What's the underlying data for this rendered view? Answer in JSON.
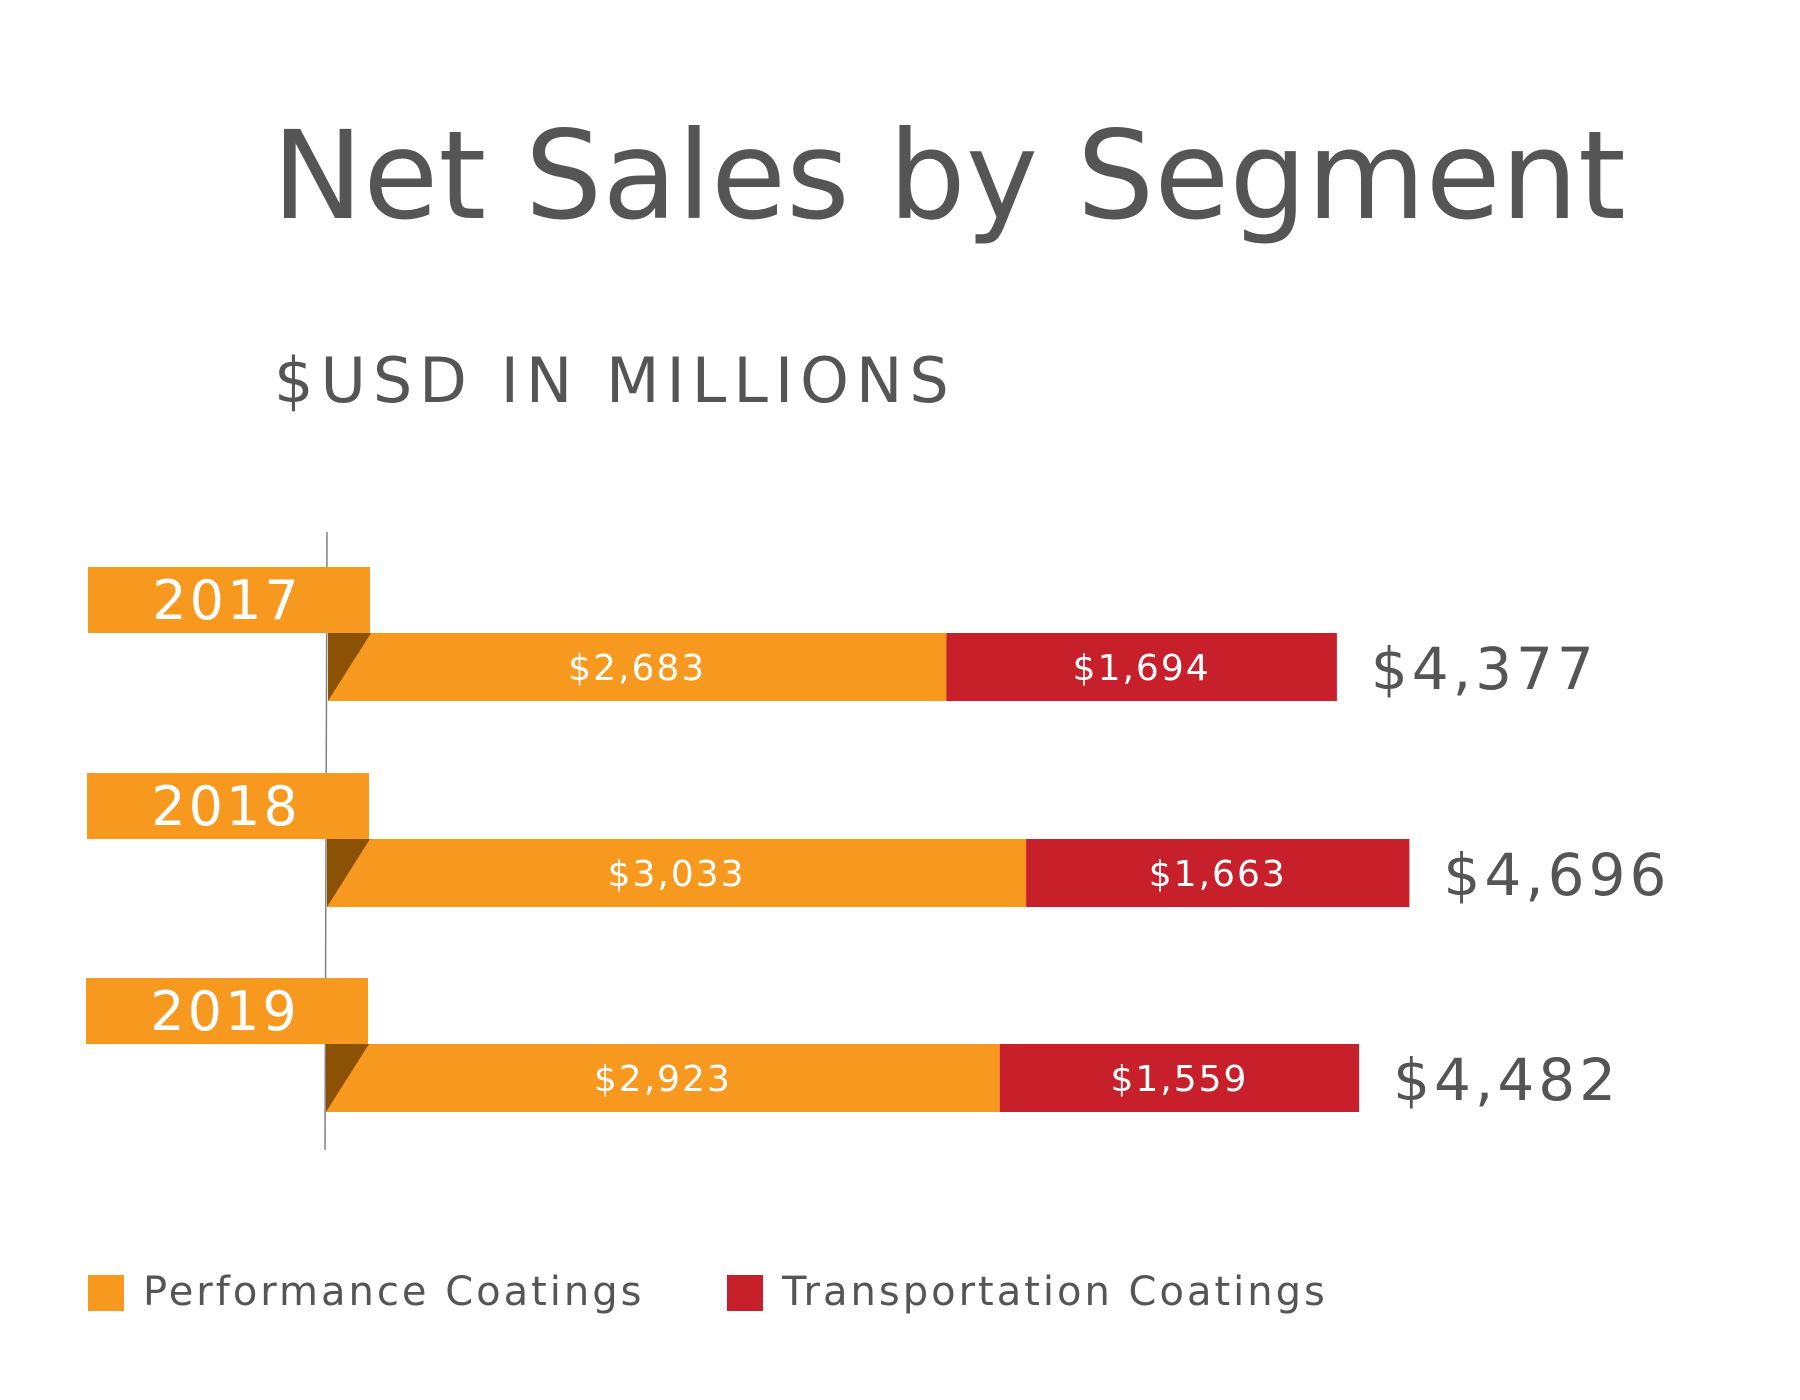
{
  "chart_data": {
    "type": "bar",
    "orientation": "horizontal",
    "stacked": true,
    "title": "Net Sales by Segment",
    "subtitle": "$USD IN MILLIONS",
    "categories": [
      "2017",
      "2018",
      "2019"
    ],
    "series": [
      {
        "name": "Performance Coatings",
        "values": [
          2683,
          3033,
          2923
        ],
        "labels": [
          "$2,683",
          "$3,033",
          "$2,923"
        ],
        "color": "#f7981f"
      },
      {
        "name": "Transportation Coatings",
        "values": [
          1694,
          1663,
          1559
        ],
        "labels": [
          "$1,694",
          "$1,663",
          "$1,559"
        ],
        "color": "#c8202a"
      }
    ],
    "totals": [
      4377,
      4696,
      4482
    ],
    "total_labels": [
      "$4,377",
      "$4,696",
      "$4,482"
    ],
    "legend_position": "bottom-left",
    "grid": false,
    "colors": {
      "text": "#555555",
      "year_tab": "#f7981f",
      "fold_shadow": "#8b5205",
      "axis_line": "#808080"
    }
  }
}
